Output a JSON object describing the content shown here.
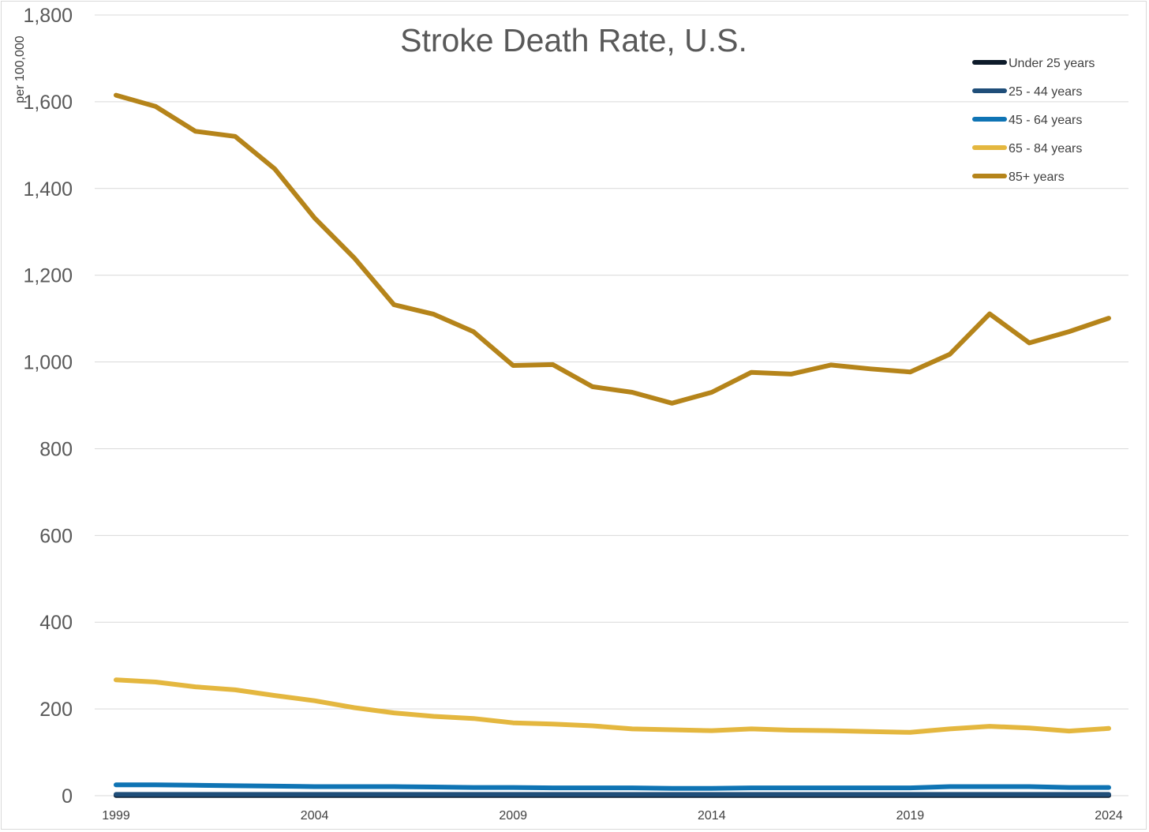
{
  "chart_data": {
    "type": "line",
    "title": "Stroke Death Rate, U.S.",
    "ylabel": "per 100,000",
    "xlabel": "",
    "ylim": [
      0,
      1800
    ],
    "y_ticks": [
      0,
      200,
      400,
      600,
      800,
      1000,
      1200,
      1400,
      1600,
      1800
    ],
    "y_tick_labels": [
      "0",
      "200",
      "400",
      "600",
      "800",
      "1,000",
      "1,200",
      "1,400",
      "1,600",
      "1,800"
    ],
    "x_tick_labels": [
      "1999",
      "2004",
      "2009",
      "2014",
      "2019",
      "2024"
    ],
    "grid": "horizontal",
    "legend_position": "top-right",
    "x": [
      1999,
      2000,
      2001,
      2002,
      2003,
      2004,
      2005,
      2006,
      2007,
      2008,
      2009,
      2010,
      2011,
      2012,
      2013,
      2014,
      2015,
      2016,
      2017,
      2018,
      2019,
      2020,
      2021,
      2022,
      2023,
      2024
    ],
    "series": [
      {
        "name": "Under 25 years",
        "color": "#0d1b2a",
        "values": [
          0.4,
          0.4,
          0.4,
          0.4,
          0.4,
          0.4,
          0.4,
          0.4,
          0.4,
          0.4,
          0.4,
          0.4,
          0.4,
          0.4,
          0.4,
          0.4,
          0.4,
          0.4,
          0.4,
          0.4,
          0.4,
          0.4,
          0.4,
          0.4,
          0.4,
          0.4
        ]
      },
      {
        "name": "25 - 44 years",
        "color": "#1f4e79",
        "values": [
          3,
          3,
          3,
          3,
          3,
          3,
          3,
          3,
          3,
          3,
          3,
          3,
          3,
          3,
          3,
          3,
          3,
          3,
          3,
          3,
          3,
          3,
          3,
          3,
          3,
          3
        ]
      },
      {
        "name": "45 - 64 years",
        "color": "#0f74b4",
        "values": [
          25,
          25,
          24,
          23,
          22,
          21,
          21,
          21,
          20,
          19,
          19,
          18,
          18,
          18,
          17,
          17,
          18,
          18,
          18,
          18,
          18,
          21,
          21,
          21,
          19,
          19
        ]
      },
      {
        "name": "65 - 84 years",
        "color": "#e4b73f",
        "values": [
          267,
          262,
          251,
          244,
          231,
          219,
          203,
          191,
          183,
          178,
          168,
          165,
          161,
          154,
          152,
          150,
          154,
          151,
          150,
          148,
          146,
          154,
          160,
          156,
          149,
          155
        ]
      },
      {
        "name": "85+ years",
        "color": "#b5841a",
        "values": [
          1615,
          1589,
          1532,
          1520,
          1445,
          1332,
          1240,
          1132,
          1110,
          1070,
          992,
          994,
          943,
          930,
          905,
          930,
          976,
          972,
          993,
          984,
          977,
          1018,
          1111,
          1044,
          1070,
          1101
        ]
      }
    ]
  }
}
